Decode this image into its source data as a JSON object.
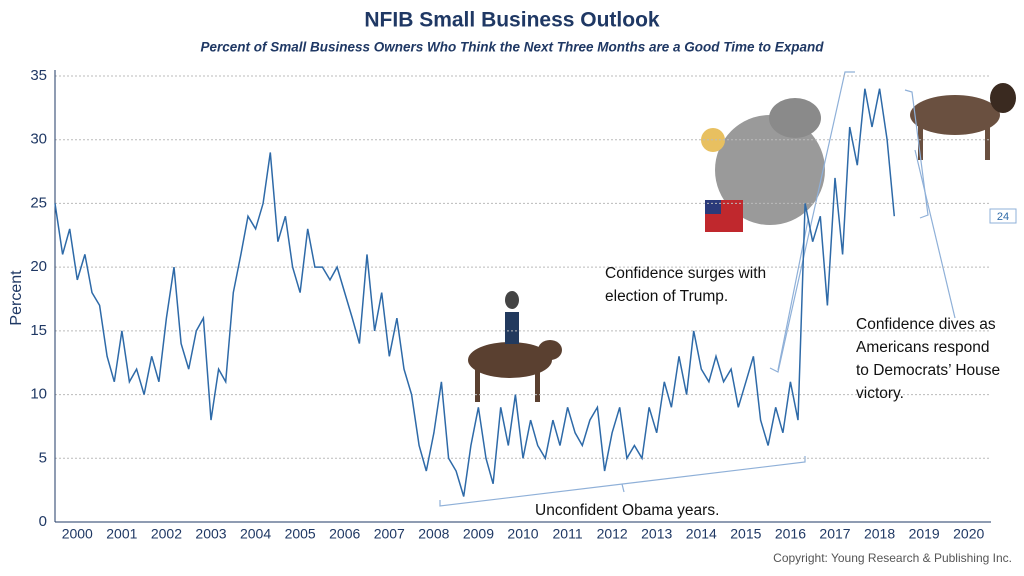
{
  "chart_data": {
    "type": "line",
    "title": "NFIB Small Business Outlook",
    "subtitle": "Percent of Small Business Owners Who Think the Next Three Months are a Good Time to Expand",
    "y_label": "Percent",
    "source": "Copyright: Young Research & Publishing Inc.",
    "annotations": [
      [
        "Confidence surges with",
        "election of Trump."
      ],
      [
        "Confidence dives as",
        "Americans respond",
        "to Democrats’ House",
        "victory."
      ],
      [
        "Unconfident Obama years."
      ]
    ],
    "color": "#2e6aa8",
    "grid": true,
    "x": [
      2000,
      2000.17,
      2000.33,
      2000.5,
      2000.67,
      2000.83,
      2001,
      2001.17,
      2001.33,
      2001.5,
      2001.67,
      2001.83,
      2002,
      2002.17,
      2002.33,
      2002.5,
      2002.67,
      2002.83,
      2003,
      2003.17,
      2003.33,
      2003.5,
      2003.67,
      2003.83,
      2004,
      2004.17,
      2004.33,
      2004.5,
      2004.67,
      2004.83,
      2005,
      2005.17,
      2005.33,
      2005.5,
      2005.67,
      2005.83,
      2006,
      2006.17,
      2006.33,
      2006.5,
      2006.67,
      2006.83,
      2007,
      2007.17,
      2007.33,
      2007.5,
      2007.67,
      2007.83,
      2008,
      2008.17,
      2008.33,
      2008.5,
      2008.67,
      2008.83,
      2009,
      2009.17,
      2009.33,
      2009.5,
      2009.67,
      2009.83,
      2010,
      2010.17,
      2010.33,
      2010.5,
      2010.67,
      2010.83,
      2011,
      2011.17,
      2011.33,
      2011.5,
      2011.67,
      2011.83,
      2012,
      2012.17,
      2012.33,
      2012.5,
      2012.67,
      2012.83,
      2013,
      2013.17,
      2013.33,
      2013.5,
      2013.67,
      2013.83,
      2014,
      2014.17,
      2014.33,
      2014.5,
      2014.67,
      2014.83,
      2015,
      2015.17,
      2015.33,
      2015.5,
      2015.67,
      2015.83,
      2016,
      2016.17,
      2016.33,
      2016.5,
      2016.67,
      2016.83,
      2017,
      2017.17,
      2017.33,
      2017.5,
      2017.67,
      2017.83,
      2018,
      2018.17,
      2018.33,
      2018.5,
      2018.67,
      2018.83
    ],
    "values": [
      25,
      21,
      23,
      19,
      21,
      18,
      17,
      13,
      11,
      15,
      11,
      12,
      10,
      13,
      11,
      16,
      20,
      14,
      12,
      15,
      16,
      8,
      12,
      11,
      18,
      21,
      24,
      23,
      25,
      29,
      22,
      24,
      20,
      18,
      23,
      20,
      20,
      19,
      20,
      18,
      16,
      14,
      21,
      15,
      18,
      13,
      16,
      12,
      10,
      6,
      4,
      7,
      11,
      5,
      4,
      2,
      6,
      9,
      5,
      3,
      9,
      6,
      10,
      5,
      8,
      6,
      5,
      8,
      6,
      9,
      7,
      6,
      8,
      9,
      4,
      7,
      9,
      5,
      6,
      5,
      9,
      7,
      11,
      9,
      13,
      10,
      15,
      12,
      11,
      13,
      11,
      12,
      9,
      11,
      13,
      8,
      6,
      9,
      7,
      11,
      8,
      25,
      22,
      24,
      17,
      27,
      21,
      31,
      28,
      34,
      31,
      34,
      30,
      24
    ],
    "xlim": [
      2000,
      2021
    ],
    "xticks": [
      {
        "value": 2000.5,
        "label": "2000"
      },
      {
        "value": 2001.5,
        "label": "2001"
      },
      {
        "value": 2002.5,
        "label": "2002"
      },
      {
        "value": 2003.5,
        "label": "2003"
      },
      {
        "value": 2004.5,
        "label": "2004"
      },
      {
        "value": 2005.5,
        "label": "2005"
      },
      {
        "value": 2006.5,
        "label": "2006"
      },
      {
        "value": 2007.5,
        "label": "2007"
      },
      {
        "value": 2008.5,
        "label": "2008"
      },
      {
        "value": 2009.5,
        "label": "2009"
      },
      {
        "value": 2010.5,
        "label": "2010"
      },
      {
        "value": 2011.5,
        "label": "2011"
      },
      {
        "value": 2012.5,
        "label": "2012"
      },
      {
        "value": 2013.5,
        "label": "2013"
      },
      {
        "value": 2014.5,
        "label": "2014"
      },
      {
        "value": 2015.5,
        "label": "2015"
      },
      {
        "value": 2016.5,
        "label": "2016"
      },
      {
        "value": 2017.5,
        "label": "2017"
      },
      {
        "value": 2018.5,
        "label": "2018"
      },
      {
        "value": 2019.5,
        "label": "2019"
      },
      {
        "value": 2020.5,
        "label": "2020"
      }
    ],
    "ylim": [
      0,
      35
    ],
    "yticks": [
      0,
      5,
      10,
      15,
      20,
      25,
      30,
      35
    ]
  }
}
